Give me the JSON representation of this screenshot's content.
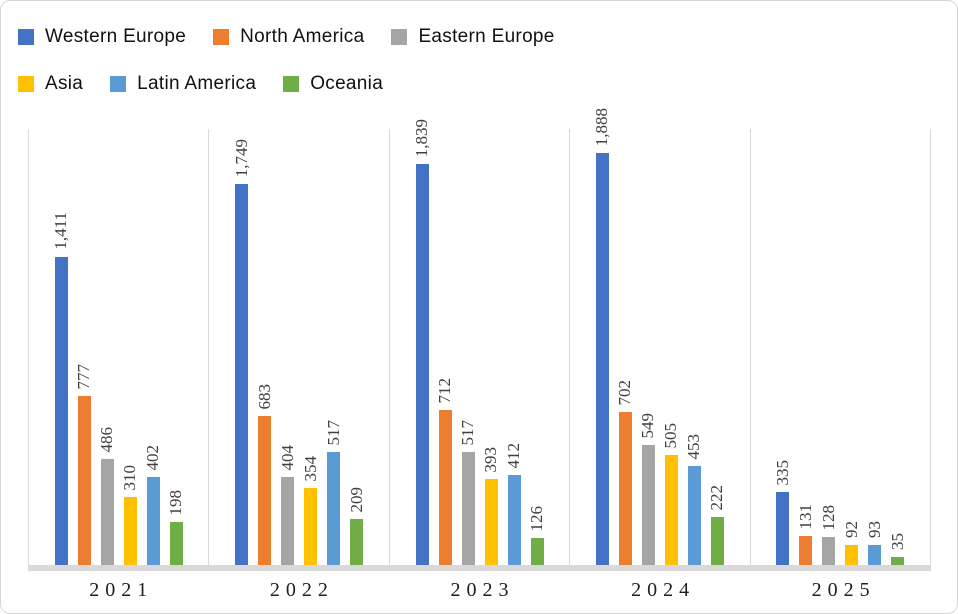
{
  "chart_data": {
    "type": "bar",
    "title": "",
    "xlabel": "",
    "ylabel": "",
    "categories": [
      "2021",
      "2022",
      "2023",
      "2024",
      "2025"
    ],
    "series": [
      {
        "name": "Western Europe",
        "color": "#4472C4",
        "values": [
          1411,
          1749,
          1839,
          1888,
          335
        ],
        "labels": [
          "1,411",
          "1,749",
          "1,839",
          "1,888",
          "335"
        ]
      },
      {
        "name": "North America",
        "color": "#ED7D31",
        "values": [
          777,
          683,
          712,
          702,
          131
        ],
        "labels": [
          "777",
          "683",
          "712",
          "702",
          "131"
        ]
      },
      {
        "name": "Eastern Europe",
        "color": "#A5A5A5",
        "values": [
          486,
          404,
          517,
          549,
          128
        ],
        "labels": [
          "486",
          "404",
          "517",
          "549",
          "128"
        ]
      },
      {
        "name": "Asia",
        "color": "#FFC000",
        "values": [
          310,
          354,
          393,
          505,
          92
        ],
        "labels": [
          "310",
          "354",
          "393",
          "505",
          "92"
        ]
      },
      {
        "name": "Latin America",
        "color": "#5B9BD5",
        "values": [
          402,
          517,
          412,
          453,
          93
        ],
        "labels": [
          "402",
          "517",
          "412",
          "453",
          "93"
        ]
      },
      {
        "name": "Oceania",
        "color": "#70AD47",
        "values": [
          198,
          209,
          126,
          222,
          35
        ],
        "labels": [
          "198",
          "209",
          "126",
          "222",
          "35"
        ]
      }
    ],
    "ylim": [
      0,
      2000
    ],
    "grid": "vertical-category-separators",
    "legend_position": "top-left",
    "legend_rows": [
      [
        0,
        1,
        2
      ],
      [
        3,
        4,
        5
      ]
    ],
    "axis_color": "#D9D9D9",
    "value_label_color": "#404040"
  }
}
